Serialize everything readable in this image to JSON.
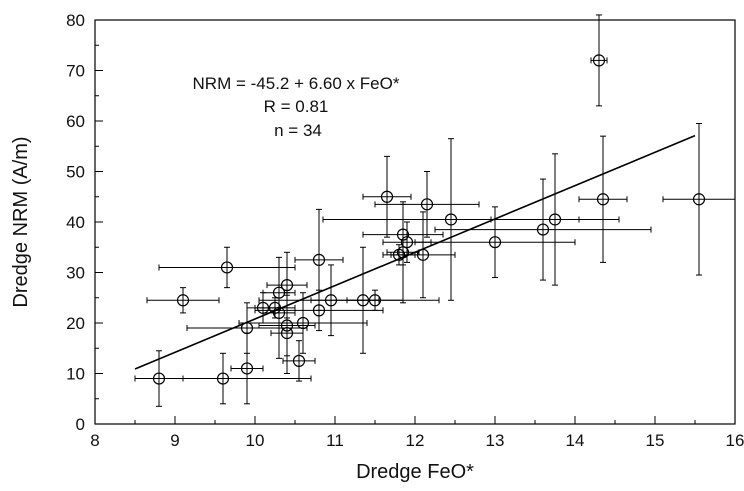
{
  "chart_data": {
    "type": "scatter",
    "title": "",
    "xlabel": "Dredge FeO*",
    "ylabel": "Dredge NRM (A/m)",
    "xlim": [
      8,
      16
    ],
    "ylim": [
      0,
      80
    ],
    "xticks": [
      8,
      9,
      10,
      11,
      12,
      13,
      14,
      15,
      16
    ],
    "yticks": [
      0,
      10,
      20,
      30,
      40,
      50,
      60,
      70,
      80
    ],
    "grid": false,
    "legend": "none",
    "annotations": [
      "NRM = -45.2 + 6.60 x FeO*",
      "R = 0.81",
      "n = 34"
    ],
    "fit_line": {
      "intercept": -45.2,
      "slope": 6.6,
      "x": [
        8.5,
        15.5
      ]
    },
    "points": [
      {
        "x": 8.8,
        "y": 9,
        "xerr": 0.3,
        "yerr": 5.5
      },
      {
        "x": 9.1,
        "y": 24.5,
        "xerr": 0.45,
        "yerr": 2.5
      },
      {
        "x": 9.6,
        "y": 9,
        "xerr": 1.1,
        "yerr": 5
      },
      {
        "x": 9.65,
        "y": 31,
        "xerr": 0.85,
        "yerr": 4
      },
      {
        "x": 9.9,
        "y": 19,
        "xerr": 0.75,
        "yerr": 5
      },
      {
        "x": 9.9,
        "y": 11,
        "xerr": 0.2,
        "yerr": 7
      },
      {
        "x": 10.1,
        "y": 23,
        "xerr": 0.2,
        "yerr": 3
      },
      {
        "x": 10.25,
        "y": 23,
        "xerr": 0.25,
        "yerr": 2
      },
      {
        "x": 10.3,
        "y": 26,
        "xerr": 0.2,
        "yerr": 7
      },
      {
        "x": 10.3,
        "y": 22,
        "xerr": 0.2,
        "yerr": 9
      },
      {
        "x": 10.4,
        "y": 27.5,
        "xerr": 0.25,
        "yerr": 6.5
      },
      {
        "x": 10.4,
        "y": 19.5,
        "xerr": 0.35,
        "yerr": 6
      },
      {
        "x": 10.4,
        "y": 18,
        "xerr": 0.2,
        "yerr": 8
      },
      {
        "x": 10.55,
        "y": 12.5,
        "xerr": 0.2,
        "yerr": 4
      },
      {
        "x": 10.6,
        "y": 20,
        "xerr": 0.8,
        "yerr": 6
      },
      {
        "x": 10.8,
        "y": 22.5,
        "xerr": 0.8,
        "yerr": 4
      },
      {
        "x": 10.8,
        "y": 32.5,
        "xerr": 0.3,
        "yerr": 10
      },
      {
        "x": 10.95,
        "y": 24.5,
        "xerr": 0.9,
        "yerr": 7
      },
      {
        "x": 11.35,
        "y": 24.5,
        "xerr": 0.2,
        "yerr": 10.5
      },
      {
        "x": 11.5,
        "y": 24.5,
        "xerr": 0.8,
        "yerr": 2
      },
      {
        "x": 11.65,
        "y": 45,
        "xerr": 0.3,
        "yerr": 8
      },
      {
        "x": 11.8,
        "y": 33.5,
        "xerr": 0.2,
        "yerr": 2
      },
      {
        "x": 11.85,
        "y": 34,
        "xerr": 0.2,
        "yerr": 10
      },
      {
        "x": 11.85,
        "y": 37.5,
        "xerr": 0.5,
        "yerr": 6
      },
      {
        "x": 11.9,
        "y": 36,
        "xerr": 0.3,
        "yerr": 4
      },
      {
        "x": 12.1,
        "y": 33.5,
        "xerr": 0.4,
        "yerr": 8.5
      },
      {
        "x": 12.15,
        "y": 43.5,
        "xerr": 0.65,
        "yerr": 6.5
      },
      {
        "x": 12.45,
        "y": 40.5,
        "xerr": 1.6,
        "yerr": 16
      },
      {
        "x": 13.0,
        "y": 36,
        "xerr": 1.0,
        "yerr": 7
      },
      {
        "x": 13.6,
        "y": 38.5,
        "xerr": 1.35,
        "yerr": 10
      },
      {
        "x": 13.75,
        "y": 40.5,
        "xerr": 0.8,
        "yerr": 13
      },
      {
        "x": 14.3,
        "y": 72,
        "xerr": 0.1,
        "yerr": 9
      },
      {
        "x": 14.35,
        "y": 44.5,
        "xerr": 0.3,
        "yerr": 12.5
      },
      {
        "x": 15.55,
        "y": 44.5,
        "xerr": 0.45,
        "yerr": 15
      }
    ]
  }
}
